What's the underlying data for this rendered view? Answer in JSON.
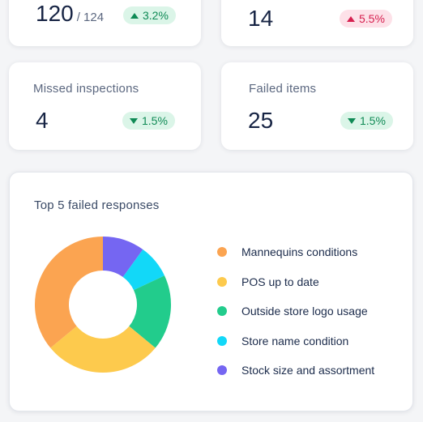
{
  "cards": [
    {
      "label": "",
      "value": "120",
      "total": "/ 124",
      "badge": "3.2%",
      "direction": "up",
      "tone": "good"
    },
    {
      "label": "",
      "value": "14",
      "total": "",
      "badge": "5.5%",
      "direction": "up",
      "tone": "bad"
    },
    {
      "label": "Missed inspections",
      "value": "4",
      "total": "",
      "badge": "1.5%",
      "direction": "down",
      "tone": "good"
    },
    {
      "label": "Failed items",
      "value": "25",
      "total": "",
      "badge": "1.5%",
      "direction": "down",
      "tone": "good"
    }
  ],
  "chart_data": {
    "type": "pie",
    "title": "Top 5 failed responses",
    "categories": [
      "Mannequins conditions",
      "POS up to date",
      "Outside store logo usage",
      "Store name condition",
      "Stock size and assortment"
    ],
    "values": [
      36,
      28,
      18,
      8,
      10
    ],
    "colors": [
      "#fba451",
      "#fdca4d",
      "#22cc8c",
      "#12d8f8",
      "#7566f2"
    ],
    "donut": true,
    "legend_position": "right"
  },
  "colors": {
    "positive_badge_bg": "#dbf5e8",
    "positive_badge_text": "#0f8a55",
    "negative_badge_bg": "#fde1e8",
    "negative_badge_text": "#d6204f"
  }
}
